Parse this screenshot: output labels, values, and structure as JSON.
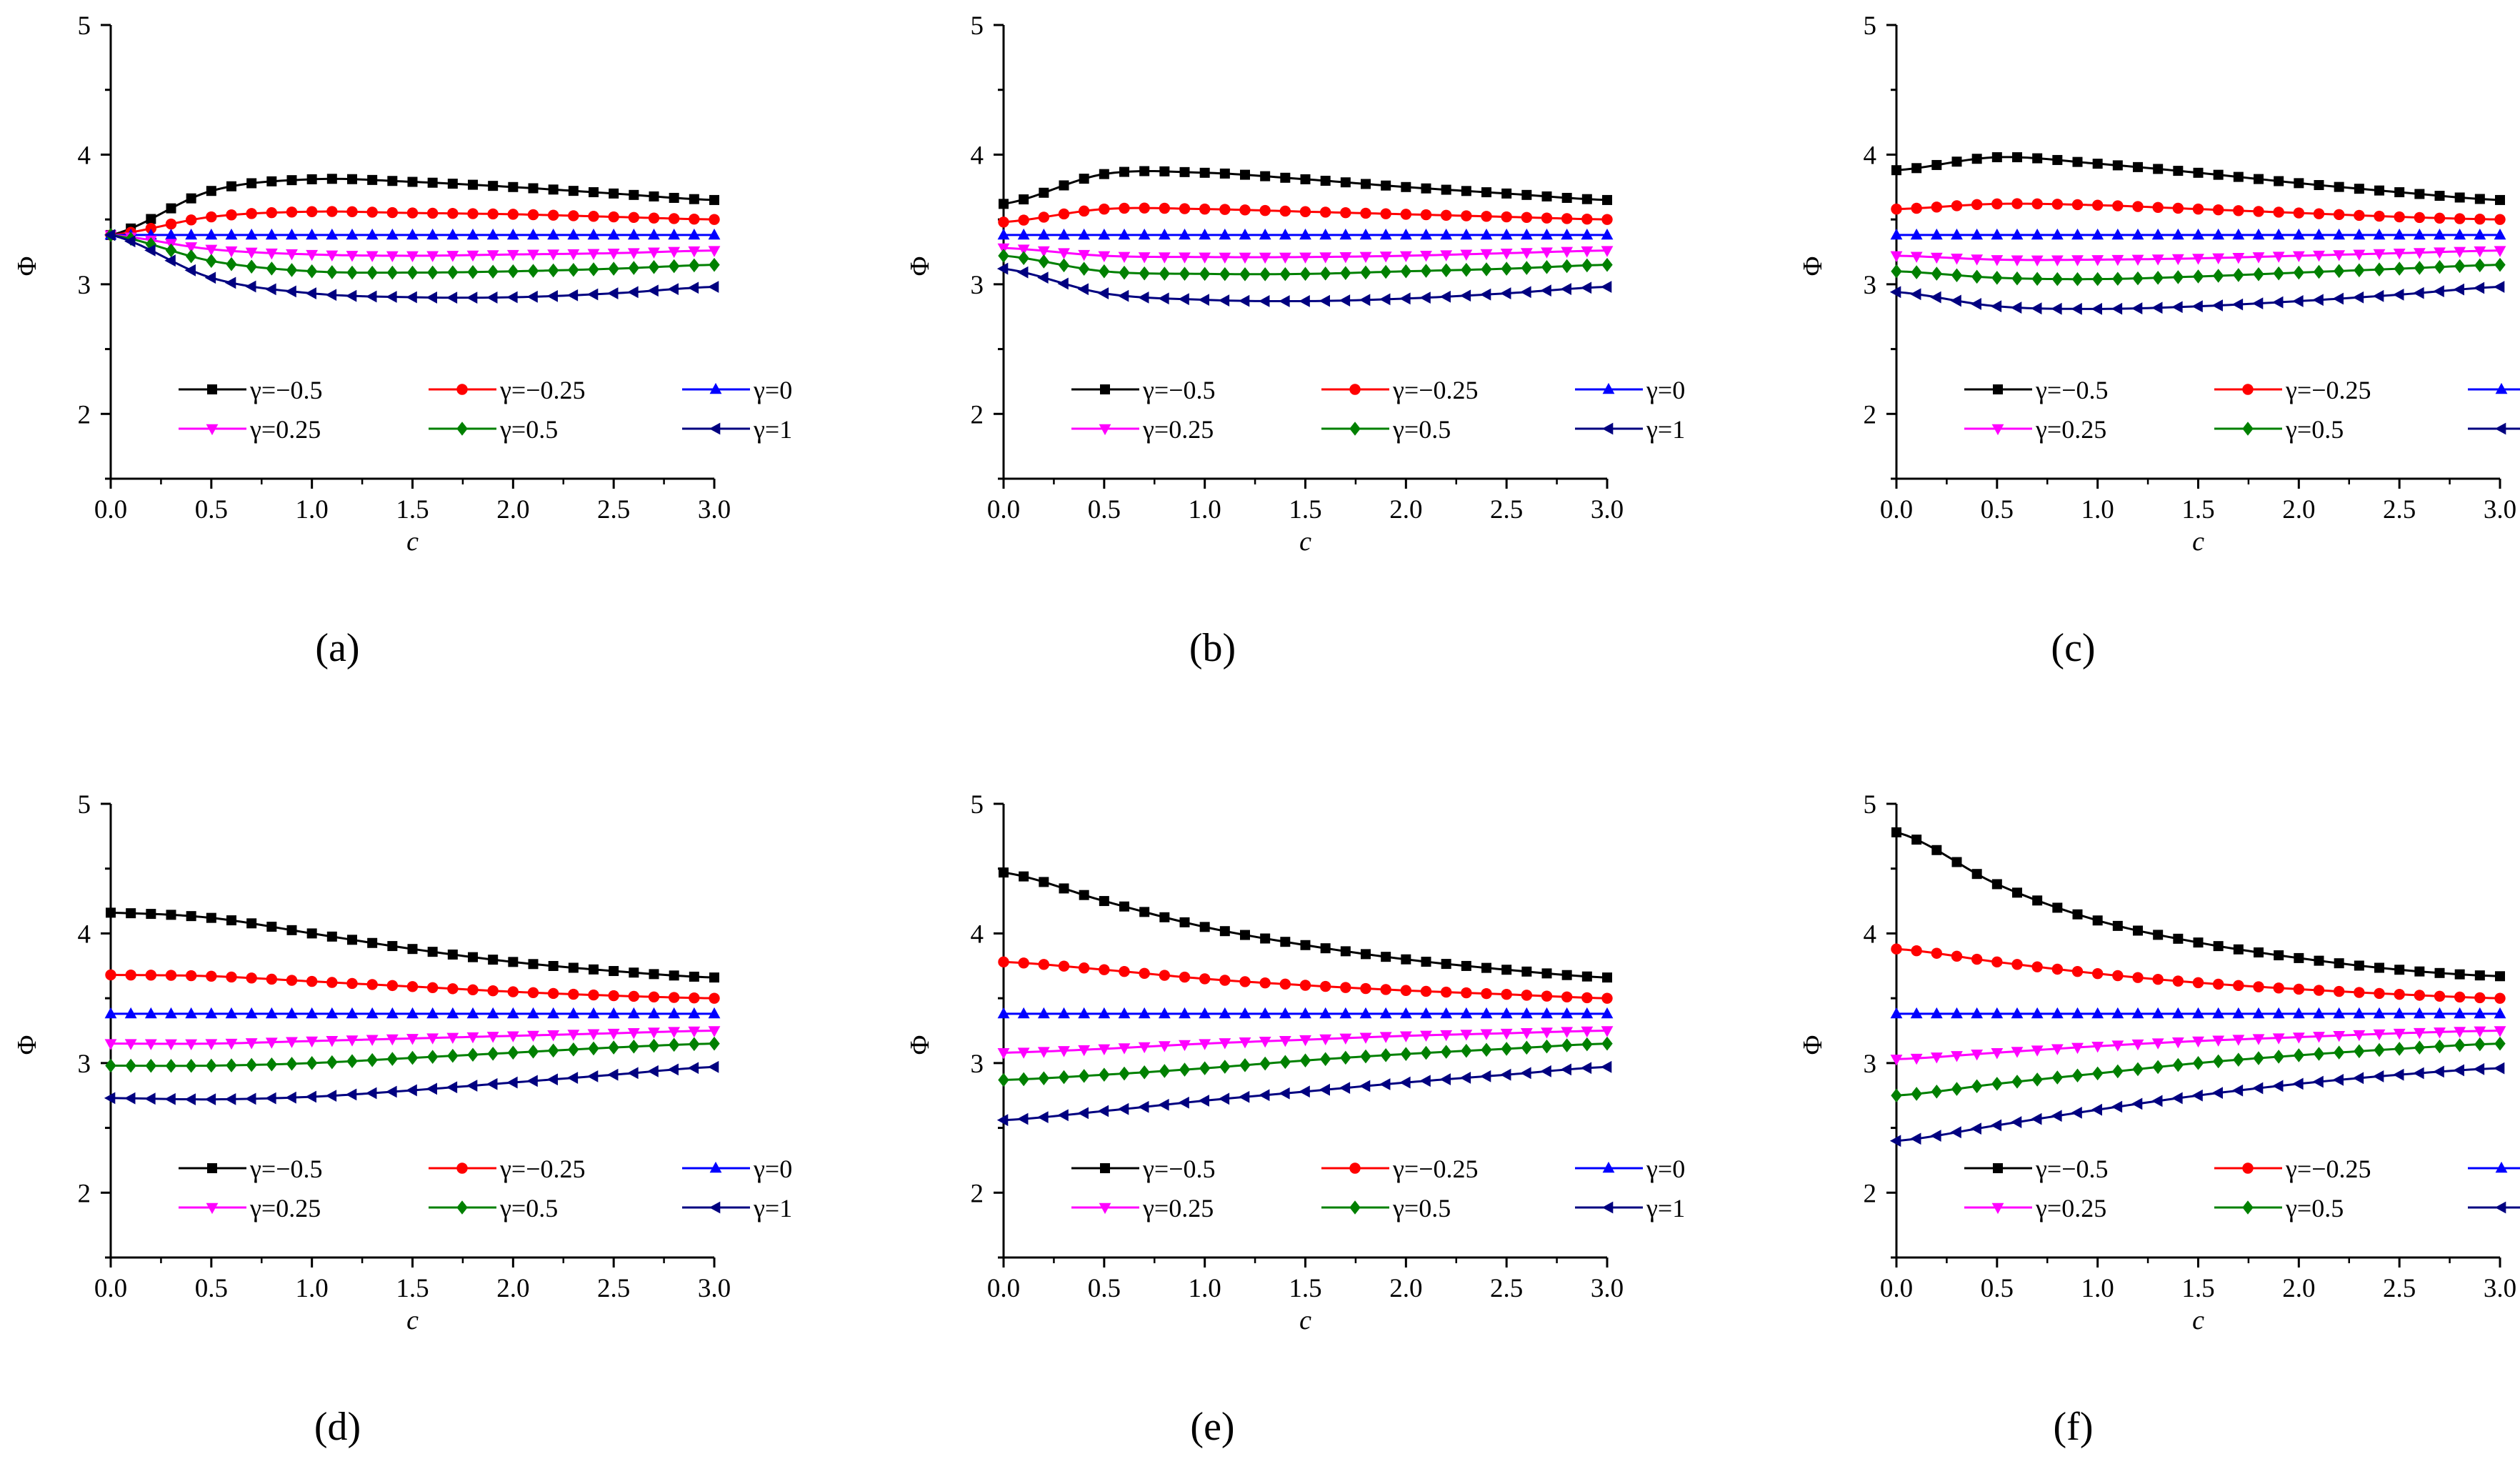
{
  "figure": {
    "panel_labels": [
      "(a)",
      "(b)",
      "(c)",
      "(d)",
      "(e)",
      "(f)"
    ]
  },
  "legend": [
    {
      "name": "γ=−0.5",
      "color": "#000000",
      "marker": "square"
    },
    {
      "name": "γ=−0.25",
      "color": "#ff0000",
      "marker": "circle"
    },
    {
      "name": "γ=0",
      "color": "#0000ff",
      "marker": "triangle-up"
    },
    {
      "name": "γ=0.25",
      "color": "#ff00ff",
      "marker": "triangle-down"
    },
    {
      "name": "γ=0.5",
      "color": "#008000",
      "marker": "diamond"
    },
    {
      "name": "γ=1",
      "color": "#000080",
      "marker": "triangle-left"
    }
  ],
  "chart_data": [
    {
      "type": "line",
      "panel": "(a)",
      "xlabel": "c",
      "ylabel": "Φ",
      "xlim": [
        0,
        3
      ],
      "ylim": [
        1.5,
        5
      ],
      "xticks": [
        "0.0",
        "0.5",
        "1.0",
        "1.5",
        "2.0",
        "2.5",
        "3.0"
      ],
      "yticks": [
        "2",
        "3",
        "4",
        "5"
      ],
      "x": [
        0,
        0.5,
        1.0,
        1.5,
        2.0,
        2.5,
        3.0
      ],
      "series": [
        {
          "name": "γ=−0.5",
          "values": [
            3.38,
            3.72,
            3.81,
            3.79,
            3.75,
            3.7,
            3.65
          ]
        },
        {
          "name": "γ=−0.25",
          "values": [
            3.38,
            3.52,
            3.56,
            3.55,
            3.54,
            3.52,
            3.5
          ]
        },
        {
          "name": "γ=0",
          "values": [
            3.38,
            3.38,
            3.38,
            3.38,
            3.38,
            3.38,
            3.38
          ]
        },
        {
          "name": "γ=0.25",
          "values": [
            3.38,
            3.27,
            3.23,
            3.22,
            3.23,
            3.24,
            3.26
          ]
        },
        {
          "name": "γ=0.5",
          "values": [
            3.38,
            3.18,
            3.1,
            3.09,
            3.1,
            3.12,
            3.15
          ]
        },
        {
          "name": "γ=1",
          "values": [
            3.38,
            3.05,
            2.93,
            2.9,
            2.9,
            2.93,
            2.98
          ]
        }
      ]
    },
    {
      "type": "line",
      "panel": "(b)",
      "xlabel": "c",
      "ylabel": "Φ",
      "xlim": [
        0,
        3
      ],
      "ylim": [
        1.5,
        5
      ],
      "xticks": [
        "0.0",
        "0.5",
        "1.0",
        "1.5",
        "2.0",
        "2.5",
        "3.0"
      ],
      "yticks": [
        "2",
        "3",
        "4",
        "5"
      ],
      "x": [
        0,
        0.5,
        1.0,
        1.5,
        2.0,
        2.5,
        3.0
      ],
      "series": [
        {
          "name": "γ=−0.5",
          "values": [
            3.62,
            3.85,
            3.86,
            3.81,
            3.75,
            3.7,
            3.65
          ]
        },
        {
          "name": "γ=−0.25",
          "values": [
            3.48,
            3.58,
            3.58,
            3.56,
            3.54,
            3.52,
            3.5
          ]
        },
        {
          "name": "γ=0",
          "values": [
            3.38,
            3.38,
            3.38,
            3.38,
            3.38,
            3.38,
            3.38
          ]
        },
        {
          "name": "γ=0.25",
          "values": [
            3.28,
            3.22,
            3.21,
            3.21,
            3.22,
            3.24,
            3.26
          ]
        },
        {
          "name": "γ=0.5",
          "values": [
            3.22,
            3.1,
            3.08,
            3.08,
            3.1,
            3.12,
            3.15
          ]
        },
        {
          "name": "γ=1",
          "values": [
            3.12,
            2.93,
            2.88,
            2.87,
            2.89,
            2.93,
            2.98
          ]
        }
      ]
    },
    {
      "type": "line",
      "panel": "(c)",
      "xlabel": "c",
      "ylabel": "Φ",
      "xlim": [
        0,
        3
      ],
      "ylim": [
        1.5,
        5
      ],
      "xticks": [
        "0.0",
        "0.5",
        "1.0",
        "1.5",
        "2.0",
        "2.5",
        "3.0"
      ],
      "yticks": [
        "2",
        "3",
        "4",
        "5"
      ],
      "x": [
        0,
        0.5,
        1.0,
        1.5,
        2.0,
        2.5,
        3.0
      ],
      "series": [
        {
          "name": "γ=−0.5",
          "values": [
            3.88,
            3.98,
            3.93,
            3.86,
            3.78,
            3.71,
            3.65
          ]
        },
        {
          "name": "γ=−0.25",
          "values": [
            3.58,
            3.62,
            3.61,
            3.58,
            3.55,
            3.52,
            3.5
          ]
        },
        {
          "name": "γ=0",
          "values": [
            3.38,
            3.38,
            3.38,
            3.38,
            3.38,
            3.38,
            3.38
          ]
        },
        {
          "name": "γ=0.25",
          "values": [
            3.22,
            3.19,
            3.19,
            3.2,
            3.22,
            3.24,
            3.26
          ]
        },
        {
          "name": "γ=0.5",
          "values": [
            3.1,
            3.05,
            3.04,
            3.06,
            3.09,
            3.12,
            3.15
          ]
        },
        {
          "name": "γ=1",
          "values": [
            2.94,
            2.83,
            2.81,
            2.83,
            2.87,
            2.92,
            2.98
          ]
        }
      ]
    },
    {
      "type": "line",
      "panel": "(d)",
      "xlabel": "c",
      "ylabel": "Φ",
      "xlim": [
        0,
        3
      ],
      "ylim": [
        1.5,
        5
      ],
      "xticks": [
        "0.0",
        "0.5",
        "1.0",
        "1.5",
        "2.0",
        "2.5",
        "3.0"
      ],
      "yticks": [
        "2",
        "3",
        "4",
        "5"
      ],
      "x": [
        0,
        0.5,
        1.0,
        1.5,
        2.0,
        2.5,
        3.0
      ],
      "series": [
        {
          "name": "γ=−0.5",
          "values": [
            4.16,
            4.12,
            4.0,
            3.88,
            3.78,
            3.71,
            3.66
          ]
        },
        {
          "name": "γ=−0.25",
          "values": [
            3.68,
            3.67,
            3.63,
            3.59,
            3.55,
            3.52,
            3.5
          ]
        },
        {
          "name": "γ=0",
          "values": [
            3.38,
            3.38,
            3.38,
            3.38,
            3.38,
            3.38,
            3.38
          ]
        },
        {
          "name": "γ=0.25",
          "values": [
            3.15,
            3.15,
            3.17,
            3.19,
            3.21,
            3.23,
            3.25
          ]
        },
        {
          "name": "γ=0.5",
          "values": [
            2.98,
            2.98,
            3.0,
            3.04,
            3.08,
            3.12,
            3.15
          ]
        },
        {
          "name": "γ=1",
          "values": [
            2.73,
            2.72,
            2.74,
            2.79,
            2.85,
            2.91,
            2.97
          ]
        }
      ]
    },
    {
      "type": "line",
      "panel": "(e)",
      "xlabel": "c",
      "ylabel": "Φ",
      "xlim": [
        0,
        3
      ],
      "ylim": [
        1.5,
        5
      ],
      "xticks": [
        "0.0",
        "0.5",
        "1.0",
        "1.5",
        "2.0",
        "2.5",
        "3.0"
      ],
      "yticks": [
        "2",
        "3",
        "4",
        "5"
      ],
      "x": [
        0,
        0.5,
        1.0,
        1.5,
        2.0,
        2.5,
        3.0
      ],
      "series": [
        {
          "name": "γ=−0.5",
          "values": [
            4.47,
            4.25,
            4.05,
            3.91,
            3.8,
            3.72,
            3.66
          ]
        },
        {
          "name": "γ=−0.25",
          "values": [
            3.78,
            3.72,
            3.65,
            3.6,
            3.56,
            3.53,
            3.5
          ]
        },
        {
          "name": "γ=0",
          "values": [
            3.38,
            3.38,
            3.38,
            3.38,
            3.38,
            3.38,
            3.38
          ]
        },
        {
          "name": "γ=0.25",
          "values": [
            3.08,
            3.11,
            3.15,
            3.18,
            3.21,
            3.23,
            3.25
          ]
        },
        {
          "name": "γ=0.5",
          "values": [
            2.87,
            2.91,
            2.96,
            3.02,
            3.07,
            3.11,
            3.15
          ]
        },
        {
          "name": "γ=1",
          "values": [
            2.56,
            2.63,
            2.71,
            2.78,
            2.85,
            2.91,
            2.97
          ]
        }
      ]
    },
    {
      "type": "line",
      "panel": "(f)",
      "xlabel": "c",
      "ylabel": "Φ",
      "xlim": [
        0,
        3
      ],
      "ylim": [
        1.5,
        5
      ],
      "xticks": [
        "0.0",
        "0.5",
        "1.0",
        "1.5",
        "2.0",
        "2.5",
        "3.0"
      ],
      "yticks": [
        "2",
        "3",
        "4",
        "5"
      ],
      "x": [
        0,
        0.5,
        1.0,
        1.5,
        2.0,
        2.5,
        3.0
      ],
      "series": [
        {
          "name": "γ=−0.5",
          "values": [
            4.78,
            4.38,
            4.1,
            3.93,
            3.81,
            3.72,
            3.67
          ]
        },
        {
          "name": "γ=−0.25",
          "values": [
            3.88,
            3.78,
            3.69,
            3.62,
            3.57,
            3.53,
            3.5
          ]
        },
        {
          "name": "γ=0",
          "values": [
            3.38,
            3.38,
            3.38,
            3.38,
            3.38,
            3.38,
            3.38
          ]
        },
        {
          "name": "γ=0.25",
          "values": [
            3.03,
            3.08,
            3.13,
            3.17,
            3.2,
            3.23,
            3.25
          ]
        },
        {
          "name": "γ=0.5",
          "values": [
            2.75,
            2.84,
            2.92,
            3.0,
            3.06,
            3.11,
            3.15
          ]
        },
        {
          "name": "γ=1",
          "values": [
            2.4,
            2.52,
            2.64,
            2.75,
            2.84,
            2.91,
            2.96
          ]
        }
      ]
    }
  ]
}
